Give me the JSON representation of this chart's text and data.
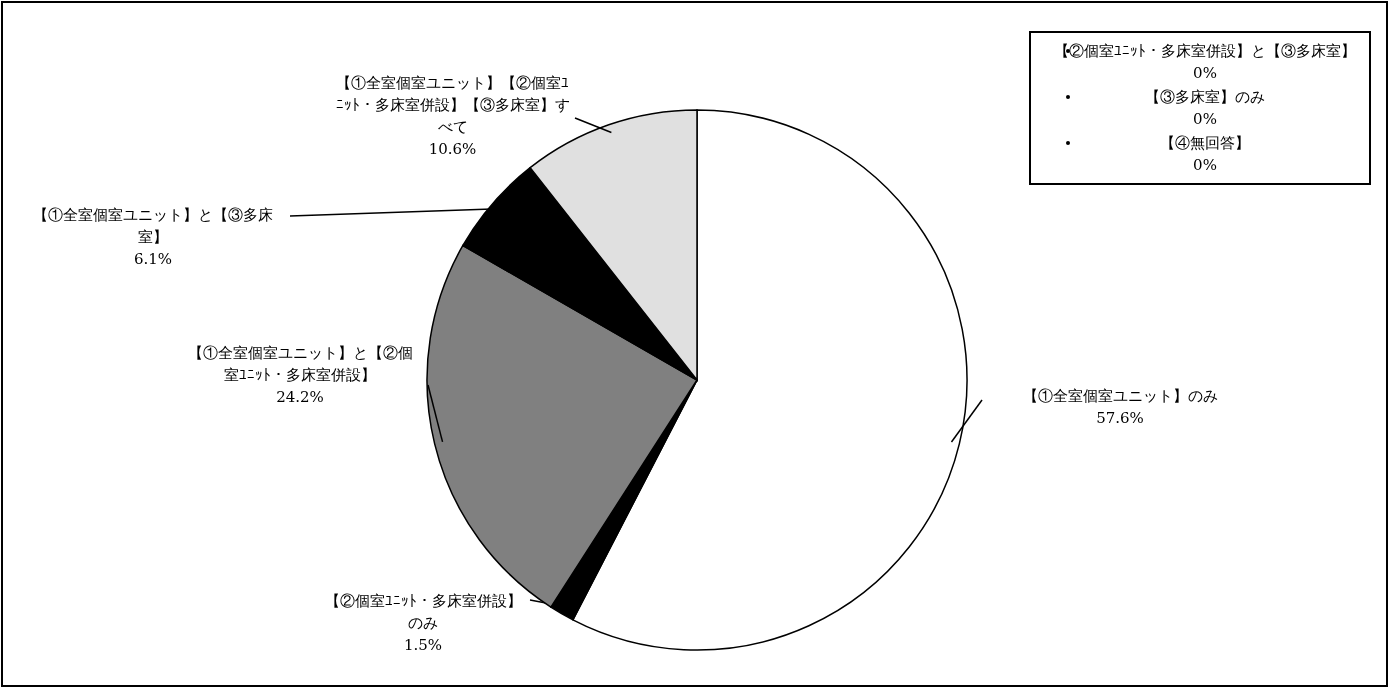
{
  "chart_data": {
    "type": "pie",
    "categories": [
      "【①全室個室ユニット】のみ",
      "【②個室ﾕﾆｯﾄ・多床室併設】のみ",
      "【①全室個室ユニット】と【②個室ﾕﾆｯﾄ・多床室併設】",
      "【①全室個室ユニット】と【③多床室】",
      "【①全室個室ユニット】【②個室ﾕﾆｯﾄ・多床室併設】【③多床室】すべて",
      "【②個室ﾕﾆｯﾄ・多床室併設】と【③多床室】",
      "【③多床室】のみ",
      "【④無回答】"
    ],
    "values": [
      57.6,
      1.5,
      24.2,
      6.1,
      10.6,
      0,
      0,
      0
    ],
    "value_labels": [
      "57.6%",
      "1.5%",
      "24.2%",
      "6.1%",
      "10.6%",
      "0%",
      "0%",
      "0%"
    ],
    "colors": [
      "#ffffff",
      "#000000",
      "#808080",
      "#000000",
      "#e0e0e0",
      "#ffffff",
      "#ffffff",
      "#ffffff"
    ]
  }
}
